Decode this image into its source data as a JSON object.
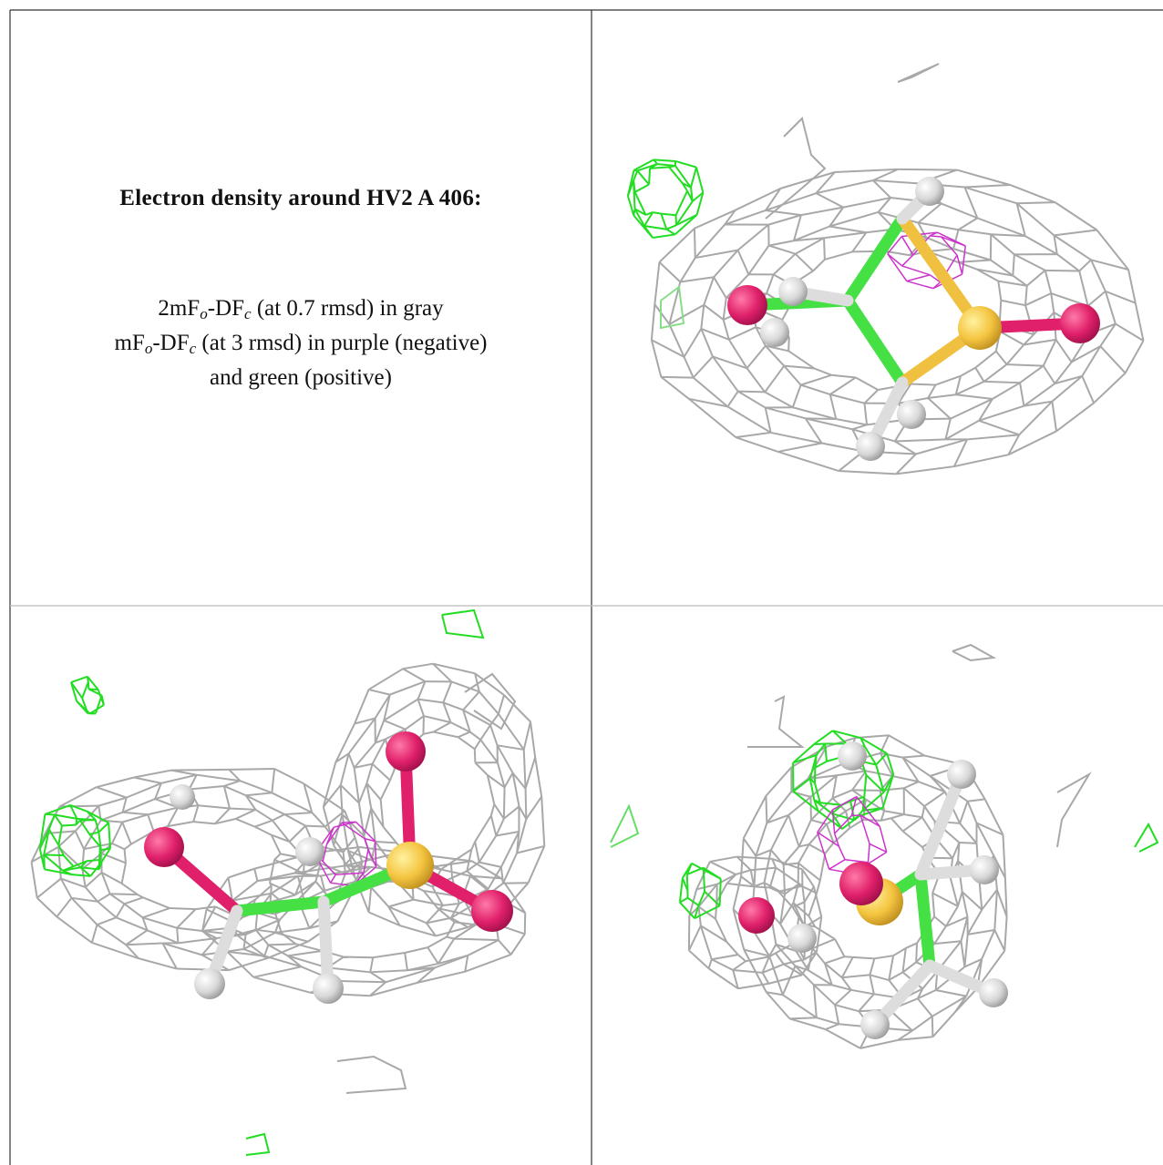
{
  "figure": {
    "title": "Electron density around HV2 A 406:",
    "caption_lines": [
      [
        "2mF",
        "o",
        "-DF",
        "c",
        " (at 0.7 rmsd) in gray"
      ],
      [
        "mF",
        "o",
        "-DF",
        "c",
        " (at 3 rmsd) in purple (negative)"
      ],
      [
        "and green (positive)"
      ]
    ]
  }
}
